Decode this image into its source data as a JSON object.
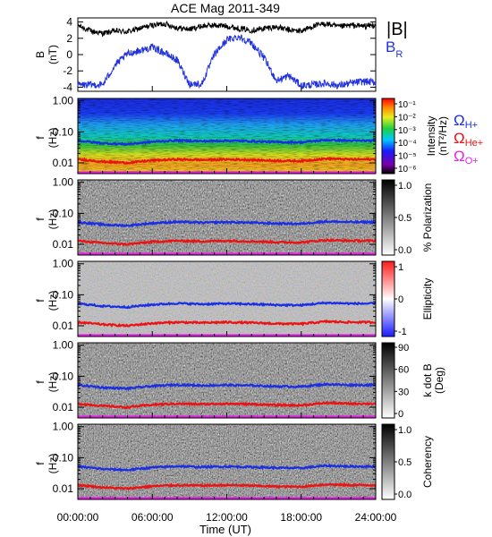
{
  "title": "ACE Mag 2011-349",
  "xlabel": "Time (UT)",
  "xticks": [
    "00:00:00",
    "06:00:00",
    "12:00:00",
    "18:00:00",
    "24:00:00"
  ],
  "colors": {
    "total_field": "#000000",
    "radial_field": "#2233dd",
    "omega_h": "#1a2ee6",
    "omega_he": "#ee1111",
    "omega_o": "#e81ee8"
  },
  "top_panel": {
    "ylabel": "B",
    "yunit": "(nT)",
    "yticks": [
      "4",
      "2",
      "0",
      "-2",
      "-4"
    ],
    "legend_total": "|B|",
    "legend_radial": "B",
    "legend_radial_sub": "R"
  },
  "spectral_ylabel": "f",
  "spectral_yunit": "(Hz)",
  "spectral_yticks": [
    "1.00",
    "0.10",
    "0.01"
  ],
  "gyro_labels": {
    "h": "Ω",
    "h_sub": "H+",
    "he": "Ω",
    "he_sub": "He+",
    "o": "Ω",
    "o_sub": "O+"
  },
  "panels": [
    {
      "key": "intensity",
      "colorbar_label": "Intensity",
      "colorbar_unit": "(nT²/Hz)",
      "colorbar_ticks": [
        "10⁻¹",
        "10⁻²",
        "10⁻³",
        "10⁻⁴",
        "10⁻⁵",
        "10⁻⁶"
      ]
    },
    {
      "key": "polarization",
      "colorbar_label": "% Polarization",
      "colorbar_unit": "",
      "colorbar_ticks": [
        "1.0",
        "0.5",
        "0.0"
      ]
    },
    {
      "key": "ellipticity",
      "colorbar_label": "Ellipticity",
      "colorbar_unit": "",
      "colorbar_ticks": [
        "1",
        "0",
        "-1"
      ]
    },
    {
      "key": "kdotb",
      "colorbar_label": "k dot B",
      "colorbar_unit": "(Deg)",
      "colorbar_ticks": [
        "90",
        "60",
        "30",
        "0"
      ]
    },
    {
      "key": "coherency",
      "colorbar_label": "Coherency",
      "colorbar_unit": "",
      "colorbar_ticks": [
        "1.0",
        "0.5",
        "0.0"
      ]
    }
  ],
  "chart_data": {
    "type": "line",
    "title": "ACE Mag 2011-349",
    "xlabel": "Time (UT)",
    "xlim_hours": [
      0,
      24
    ],
    "field": {
      "ylim": [
        -4.5,
        4.5
      ],
      "time_hours": [
        0,
        1,
        2,
        3,
        4,
        5,
        6,
        7,
        8,
        9,
        10,
        11,
        12,
        13,
        14,
        15,
        16,
        17,
        18,
        19,
        20,
        21,
        22,
        23,
        24
      ],
      "series": [
        {
          "name": "|B|",
          "values": [
            3.6,
            2.9,
            2.6,
            2.9,
            2.8,
            3.2,
            3.6,
            3.8,
            3.3,
            3.1,
            3.5,
            3.6,
            3.5,
            3.2,
            3.0,
            3.2,
            3.4,
            3.0,
            2.9,
            3.5,
            3.8,
            3.4,
            3.6,
            3.5,
            3.6
          ]
        },
        {
          "name": "B_R",
          "values": [
            -3.7,
            -3.7,
            -3.7,
            -1.3,
            0.1,
            0.5,
            0.9,
            0.2,
            -0.7,
            -3.6,
            -3.6,
            0.0,
            1.8,
            2.2,
            1.4,
            -0.4,
            -3.2,
            -2.6,
            -3.8,
            -3.7,
            -3.5,
            -3.8,
            -3.5,
            -3.3,
            -3.4
          ]
        }
      ]
    },
    "gyrofrequencies": {
      "ylim_hz": [
        0.0045,
        1.2
      ],
      "yscale": "log",
      "time_hours": [
        0,
        2,
        4,
        6,
        8,
        10,
        12,
        14,
        16,
        18,
        20,
        22,
        24
      ],
      "series": [
        {
          "name": "Ω_H+",
          "values_hz": [
            0.052,
            0.043,
            0.04,
            0.048,
            0.053,
            0.05,
            0.052,
            0.05,
            0.047,
            0.046,
            0.055,
            0.052,
            0.052
          ]
        },
        {
          "name": "Ω_He+",
          "values_hz": [
            0.013,
            0.011,
            0.01,
            0.012,
            0.013,
            0.0125,
            0.013,
            0.0125,
            0.0117,
            0.0115,
            0.0137,
            0.013,
            0.013
          ]
        },
        {
          "name": "Ω_O+",
          "values_hz": [
            0.0033,
            0.0027,
            0.0025,
            0.003,
            0.0033,
            0.0031,
            0.0032,
            0.0031,
            0.0029,
            0.0029,
            0.0034,
            0.0033,
            0.0033
          ]
        }
      ]
    }
  }
}
